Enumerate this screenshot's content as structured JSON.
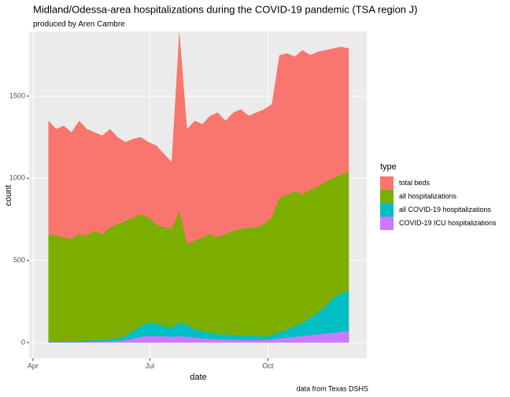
{
  "chart_data": {
    "type": "area",
    "title": "Midland/Odessa-area hospitalizations during the COVID-19 pandemic (TSA region J)",
    "subtitle": "produced by Aren Cambre",
    "x_label": "date",
    "y_label": "count",
    "caption": "data from Texas DSHS",
    "legend_title": "type",
    "grid": true,
    "xlim": [
      -3,
      260
    ],
    "ylim": [
      -96,
      1893
    ],
    "xticks": [
      {
        "value": 0,
        "label": "Apr"
      },
      {
        "value": 91,
        "label": "Jul"
      },
      {
        "value": 183,
        "label": "Oct"
      }
    ],
    "yticks": [
      0,
      500,
      1000,
      1500
    ],
    "x": [
      12,
      18,
      24,
      30,
      36,
      42,
      48,
      54,
      60,
      66,
      72,
      78,
      84,
      90,
      96,
      102,
      108,
      114,
      120,
      126,
      132,
      138,
      144,
      150,
      156,
      162,
      168,
      174,
      180,
      186,
      192,
      198,
      204,
      210,
      216,
      222,
      228,
      234,
      240,
      246
    ],
    "series": [
      {
        "name": "total beds",
        "color": "#f8766d",
        "values": [
          1350,
          1300,
          1320,
          1280,
          1350,
          1300,
          1280,
          1260,
          1300,
          1250,
          1220,
          1240,
          1250,
          1220,
          1200,
          1150,
          1100,
          1900,
          1300,
          1350,
          1330,
          1380,
          1400,
          1350,
          1400,
          1420,
          1380,
          1400,
          1420,
          1450,
          1750,
          1760,
          1740,
          1780,
          1750,
          1770,
          1780,
          1790,
          1800,
          1790
        ]
      },
      {
        "name": "all hospitalizations",
        "color": "#7cae00",
        "values": [
          660,
          650,
          640,
          630,
          660,
          650,
          680,
          660,
          700,
          720,
          740,
          760,
          780,
          760,
          720,
          700,
          690,
          800,
          600,
          620,
          640,
          660,
          640,
          660,
          680,
          690,
          700,
          700,
          720,
          760,
          880,
          900,
          920,
          900,
          930,
          950,
          980,
          1000,
          1020,
          1040
        ]
      },
      {
        "name": "all COVID-19 hospitalizations",
        "color": "#00bfc4",
        "values": [
          10,
          8,
          6,
          5,
          10,
          12,
          15,
          15,
          20,
          25,
          40,
          70,
          100,
          120,
          115,
          100,
          90,
          120,
          110,
          80,
          70,
          60,
          50,
          50,
          45,
          45,
          40,
          40,
          35,
          45,
          60,
          80,
          100,
          120,
          150,
          180,
          220,
          270,
          300,
          310
        ]
      },
      {
        "name": "COVID-19 ICU hospitalizations",
        "color": "#c77cff",
        "values": [
          3,
          3,
          2,
          2,
          3,
          4,
          5,
          5,
          8,
          10,
          15,
          25,
          35,
          40,
          40,
          38,
          35,
          40,
          35,
          30,
          25,
          22,
          20,
          18,
          18,
          15,
          15,
          15,
          15,
          18,
          25,
          30,
          35,
          40,
          45,
          50,
          55,
          60,
          65,
          70
        ]
      }
    ]
  }
}
